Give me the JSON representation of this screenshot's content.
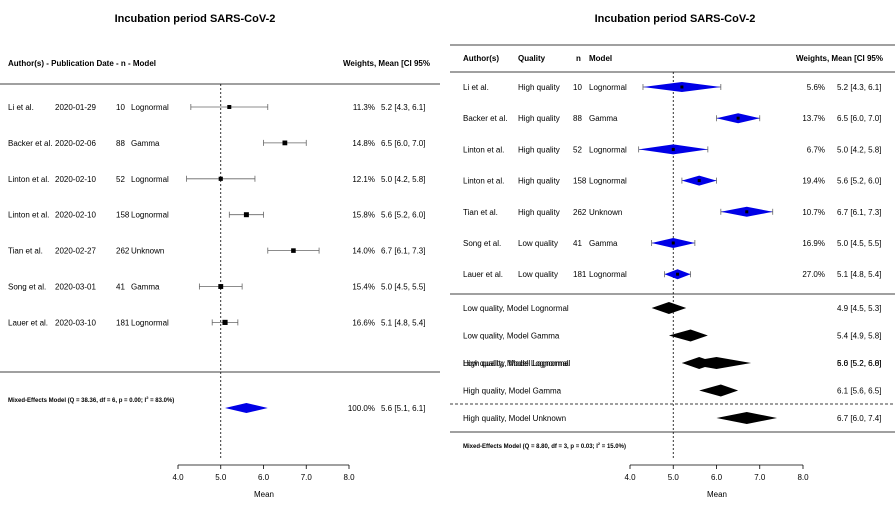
{
  "chart_data": [
    {
      "type": "forest",
      "title": "Incubation period SARS-CoV-2",
      "header": {
        "author": "Author(s) - Publication Date -  n - Model",
        "weights": "Weights, Mean [CI 95%"
      },
      "xlabel": "Mean",
      "xlim": [
        4.0,
        8.0
      ],
      "xticks": [
        "4.0",
        "5.0",
        "6.0",
        "7.0",
        "8.0"
      ],
      "reference_line": 5.0,
      "studies": [
        {
          "author": "Li et al.",
          "date": "2020-01-29",
          "n": "10",
          "model": "Lognormal",
          "weight": "11.3%",
          "mean": 5.2,
          "lower": 4.3,
          "upper": 6.1,
          "ci": "5.2 [4.3, 6.1]"
        },
        {
          "author": "Backer et al.",
          "date": "2020-02-06",
          "n": "88",
          "model": "Gamma",
          "weight": "14.8%",
          "mean": 6.5,
          "lower": 6.0,
          "upper": 7.0,
          "ci": "6.5 [6.0, 7.0]"
        },
        {
          "author": "Linton et al.",
          "date": "2020-02-10",
          "n": "52",
          "model": "Lognormal",
          "weight": "12.1%",
          "mean": 5.0,
          "lower": 4.2,
          "upper": 5.8,
          "ci": "5.0 [4.2, 5.8]"
        },
        {
          "author": "Linton et al.",
          "date": "2020-02-10",
          "n": "158",
          "model": "Lognormal",
          "weight": "15.8%",
          "mean": 5.6,
          "lower": 5.2,
          "upper": 6.0,
          "ci": "5.6 [5.2, 6.0]"
        },
        {
          "author": "Tian et al.",
          "date": "2020-02-27",
          "n": "262",
          "model": "Unknown",
          "weight": "14.0%",
          "mean": 6.7,
          "lower": 6.1,
          "upper": 7.3,
          "ci": "6.7 [6.1, 7.3]"
        },
        {
          "author": "Song et al.",
          "date": "2020-03-01",
          "n": "41",
          "model": "Gamma",
          "weight": "15.4%",
          "mean": 5.0,
          "lower": 4.5,
          "upper": 5.5,
          "ci": "5.0 [4.5, 5.5]"
        },
        {
          "author": "Lauer et al.",
          "date": "2020-03-10",
          "n": "181",
          "model": "Lognormal",
          "weight": "16.6%",
          "mean": 5.1,
          "lower": 4.8,
          "upper": 5.4,
          "ci": "5.1 [4.8, 5.4]"
        }
      ],
      "summary": {
        "label": "Mixed-Effects Model (Q = 38.36, df = 6, p = 0.00; I",
        "label_sup": "2",
        "label_end": " = 83.0%)",
        "weight": "100.0%",
        "mean": 5.6,
        "lower": 5.1,
        "upper": 6.1,
        "ci": "5.6 [5.1, 6.1]",
        "color": "#0000e6"
      }
    },
    {
      "type": "forest",
      "title": "Incubation period SARS-CoV-2",
      "header": {
        "author": "Author(s)",
        "quality": "Quality",
        "n": "n",
        "model": "Model",
        "weights": "Weights, Mean [CI 95%"
      },
      "xlabel": "Mean",
      "xlim": [
        4.0,
        8.0
      ],
      "xticks": [
        "4.0",
        "5.0",
        "6.0",
        "7.0",
        "8.0"
      ],
      "reference_line": 5.0,
      "studies": [
        {
          "author": "Li et al.",
          "quality": "High quality",
          "n": "10",
          "model": "Lognormal",
          "weight": "5.6%",
          "mean": 5.2,
          "lower": 4.3,
          "upper": 6.1,
          "ci": "5.2 [4.3, 6.1]"
        },
        {
          "author": "Backer et al.",
          "quality": "High quality",
          "n": "88",
          "model": "Gamma",
          "weight": "13.7%",
          "mean": 6.5,
          "lower": 6.0,
          "upper": 7.0,
          "ci": "6.5 [6.0, 7.0]"
        },
        {
          "author": "Linton et al.",
          "quality": "High quality",
          "n": "52",
          "model": "Lognormal",
          "weight": "6.7%",
          "mean": 5.0,
          "lower": 4.2,
          "upper": 5.8,
          "ci": "5.0 [4.2, 5.8]"
        },
        {
          "author": "Linton et al.",
          "quality": "High quality",
          "n": "158",
          "model": "Lognormal",
          "weight": "19.4%",
          "mean": 5.6,
          "lower": 5.2,
          "upper": 6.0,
          "ci": "5.6 [5.2, 6.0]"
        },
        {
          "author": "Tian et al.",
          "quality": "High quality",
          "n": "262",
          "model": "Unknown",
          "weight": "10.7%",
          "mean": 6.7,
          "lower": 6.1,
          "upper": 7.3,
          "ci": "6.7 [6.1, 7.3]"
        },
        {
          "author": "Song et al.",
          "quality": "Low quality",
          "n": "41",
          "model": "Gamma",
          "weight": "16.9%",
          "mean": 5.0,
          "lower": 4.5,
          "upper": 5.5,
          "ci": "5.0 [4.5, 5.5]"
        },
        {
          "author": "Lauer et al.",
          "quality": "Low quality",
          "n": "181",
          "model": "Lognormal",
          "weight": "27.0%",
          "mean": 5.1,
          "lower": 4.8,
          "upper": 5.4,
          "ci": "5.1 [4.8, 5.4]"
        }
      ],
      "subgroups_low": [
        {
          "label": "Low quality, Model Lognormal",
          "mean": 4.9,
          "lower": 4.5,
          "upper": 5.3,
          "ci": "4.9 [4.5, 5.3]"
        },
        {
          "label": "Low quality, Model Gamma",
          "mean": 5.4,
          "lower": 4.9,
          "upper": 5.8,
          "ci": "5.4 [4.9, 5.8]"
        },
        {
          "label": "Low quality, Model Lognormal",
          "mean": 6.0,
          "lower": 5.2,
          "upper": 6.8,
          "ci": "6.0 [5.2, 6.8]"
        }
      ],
      "subgroups_high": [
        {
          "label": "High quality, Model Lognormal",
          "mean": 5.6,
          "lower": 5.2,
          "upper": 6.0,
          "ci": "5.6 [5.2, 6.0]"
        },
        {
          "label": "High quality, Model Gamma",
          "mean": 6.1,
          "lower": 5.6,
          "upper": 6.5,
          "ci": "6.1 [5.6, 6.5]"
        },
        {
          "label": "High quality, Model Unknown",
          "mean": 6.7,
          "lower": 6.0,
          "upper": 7.4,
          "ci": "6.7 [6.0, 7.4]"
        }
      ],
      "summary": {
        "label": "Mixed-Effects Model (Q = 8.80, df = 3, p = 0.03; I",
        "label_sup": "2",
        "label_end": " = 15.0%)"
      },
      "study_diamond_color": "#0000e6",
      "subgroup_diamond_color": "#000000"
    }
  ]
}
